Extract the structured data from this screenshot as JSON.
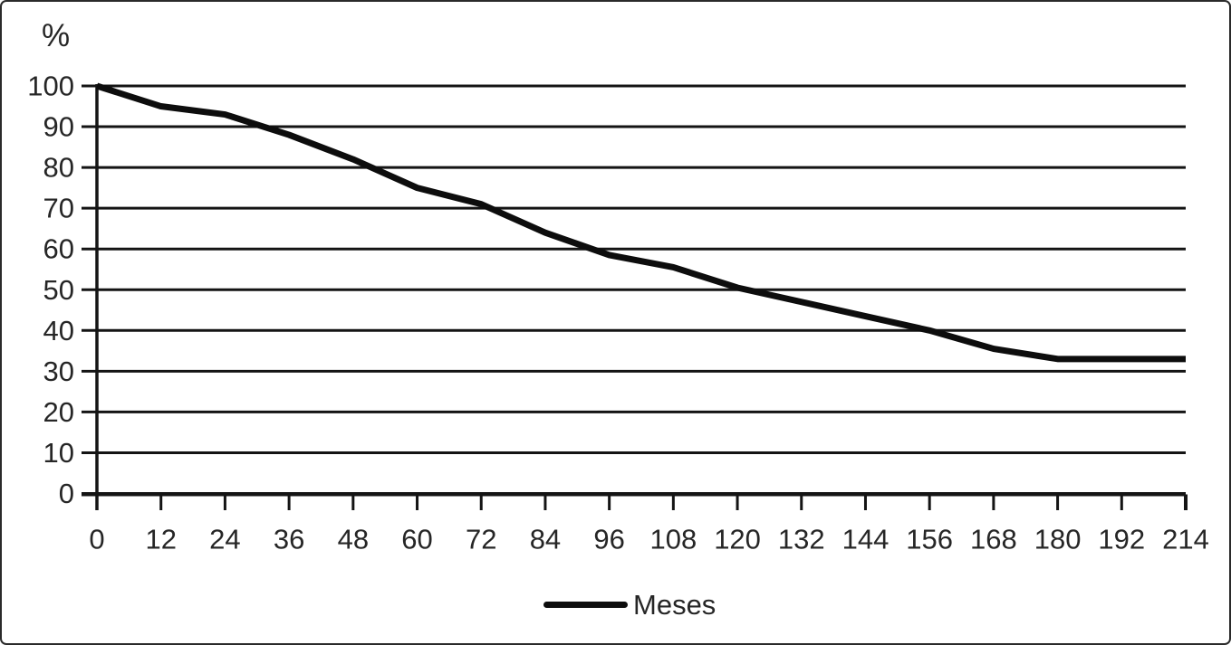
{
  "chart_data": {
    "type": "line",
    "title": "",
    "ylabel": "%",
    "xlabel": "",
    "categories": [
      "0",
      "12",
      "24",
      "36",
      "48",
      "60",
      "72",
      "84",
      "96",
      "108",
      "120",
      "132",
      "144",
      "156",
      "168",
      "180",
      "192",
      "214"
    ],
    "series": [
      {
        "name": "Meses",
        "values": [
          100,
          95,
          93,
          88,
          82,
          75,
          71,
          64,
          58.5,
          55.5,
          50.5,
          47,
          43.5,
          40,
          35.5,
          33,
          33,
          33
        ]
      }
    ],
    "ylim": [
      0,
      100
    ],
    "ytick_step": 10,
    "grid": "horizontal",
    "legend_position": "bottom-center",
    "colors": {
      "line": "#0d0d0d",
      "grid": "#141414",
      "axis": "#141414",
      "text": "#262626",
      "background": "#ffffff"
    }
  }
}
